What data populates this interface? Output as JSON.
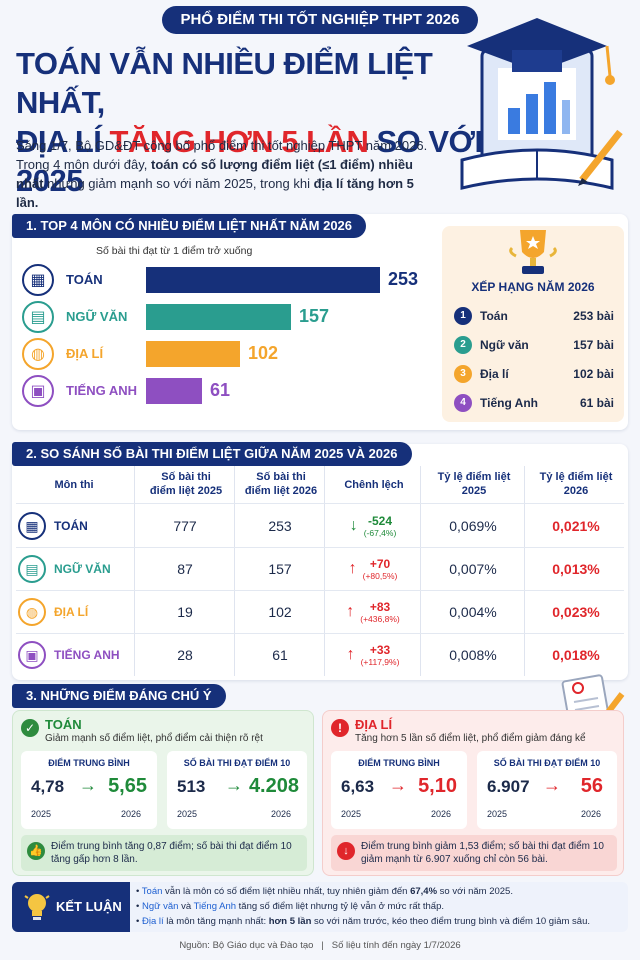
{
  "header": {
    "banner": "PHỔ ĐIỂM THI TỐT NGHIỆP THPT 2026",
    "title_line1": "TOÁN VẪN NHIỀU ĐIỂM LIỆT NHẤT,",
    "title_line2_pre": "ĐỊA LÍ ",
    "title_line2_highlight": "TĂNG HƠN 5 LẦN",
    "title_line2_post": " SO VỚI 2025",
    "intro_1": "Sáng 1/7, Bộ GD&ĐT công bố phổ điểm thi tốt nghiệp THPT năm 2026. Trong 4 môn dưới đây, ",
    "intro_bold": "toán có số lượng điểm liệt (≤1 điểm) nhiều nhất",
    "intro_2": " nhưng giảm mạnh so với năm 2025, trong khi ",
    "intro_bold2": "địa lí tăng hơn 5 lần.",
    "colors": {
      "navy": "#16307a",
      "red": "#e0262b"
    }
  },
  "section1": {
    "title": "1. TOP 4 MÔN CÓ NHIỀU ĐIỂM LIỆT NHẤT NĂM 2026",
    "note": "Số bài thi đạt từ 1 điểm trở xuống",
    "chart_data": {
      "type": "bar",
      "categories": [
        "TOÁN",
        "NGỮ VĂN",
        "ĐỊA LÍ",
        "TIẾNG ANH"
      ],
      "values": [
        253,
        157,
        102,
        61
      ],
      "colors": [
        "#16307a",
        "#2a9d8f",
        "#f4a52c",
        "#8e4fc1"
      ],
      "ylim": [
        0,
        253
      ]
    },
    "ranking": {
      "title": "XẾP HẠNG NĂM 2026",
      "unit": "bài",
      "items": [
        {
          "num": "1",
          "name": "Toán",
          "value": "253"
        },
        {
          "num": "2",
          "name": "Ngữ văn",
          "value": "157"
        },
        {
          "num": "3",
          "name": "Địa lí",
          "value": "102"
        },
        {
          "num": "4",
          "name": "Tiếng Anh",
          "value": "61"
        }
      ]
    }
  },
  "section2": {
    "title": "2. SO SÁNH SỐ BÀI THI ĐIỂM LIỆT GIỮA NĂM 2025 VÀ 2026",
    "headers": {
      "subject": "Môn thi",
      "c2025_1": "Số bài thi",
      "c2025_2": "điểm liệt 2025",
      "c2026_1": "Số bài thi",
      "c2026_2": "điểm liệt 2026",
      "diff": "Chênh lệch",
      "r2025_1": "Tỷ lệ điểm liệt",
      "r2025_2": "2025",
      "r2026_1": "Tỷ lệ điểm liệt",
      "r2026_2": "2026"
    },
    "rows": [
      {
        "subject": "TOÁN",
        "v2025": "777",
        "v2026": "253",
        "diff": "-524",
        "diff_pct": "(-67,4%)",
        "trend": "down",
        "r2025": "0,069%",
        "r2026": "0,021%"
      },
      {
        "subject": "NGỮ VĂN",
        "v2025": "87",
        "v2026": "157",
        "diff": "+70",
        "diff_pct": "(+80,5%)",
        "trend": "up",
        "r2025": "0,007%",
        "r2026": "0,013%"
      },
      {
        "subject": "ĐỊA LÍ",
        "v2025": "19",
        "v2026": "102",
        "diff": "+83",
        "diff_pct": "(+436,8%)",
        "trend": "up",
        "r2025": "0,004%",
        "r2026": "0,023%"
      },
      {
        "subject": "TIẾNG ANH",
        "v2025": "28",
        "v2026": "61",
        "diff": "+33",
        "diff_pct": "(+117,9%)",
        "trend": "up",
        "r2025": "0,008%",
        "r2026": "0,018%"
      }
    ]
  },
  "section3": {
    "title": "3. NHỮNG ĐIỂM ĐÁNG CHÚ Ý",
    "toan": {
      "title": "TOÁN",
      "subtitle": "Giảm mạnh số điểm liệt, phổ điểm cải thiện rõ rệt",
      "avg": {
        "label": "ĐIỂM TRUNG BÌNH",
        "from": "4,78",
        "to": "5,65",
        "y1": "2025",
        "y2": "2026"
      },
      "ten": {
        "label": "SỐ BÀI THI ĐẠT ĐIỂM 10",
        "from": "513",
        "to": "4.208",
        "y1": "2025",
        "y2": "2026"
      },
      "foot": "Điểm trung bình tăng 0,87 điểm; số bài thi đạt điểm 10 tăng gấp hơn 8 lần."
    },
    "diali": {
      "title": "ĐỊA LÍ",
      "subtitle": "Tăng hơn 5 lần số điểm liệt, phổ điểm giảm đáng kể",
      "avg": {
        "label": "ĐIỂM TRUNG BÌNH",
        "from": "6,63",
        "to": "5,10",
        "y1": "2025",
        "y2": "2026"
      },
      "ten": {
        "label": "SỐ BÀI THI ĐẠT ĐIỂM 10",
        "from": "6.907",
        "to": "56",
        "y1": "2025",
        "y2": "2026"
      },
      "foot": "Điểm trung bình giảm 1,53 điểm; số bài thi đạt điểm 10 giảm mạnh từ 6.907 xuống chỉ còn 56 bài."
    }
  },
  "conclusion": {
    "tag": "KẾT LUẬN",
    "l1_a": "Toán",
    "l1_b": " vẫn là môn có số điểm liệt nhiều nhất, tuy nhiên giảm đến ",
    "l1_c": "67,4%",
    "l1_d": " so với năm 2025.",
    "l2_a": "Ngữ văn",
    "l2_b": " và ",
    "l2_c": "Tiếng Anh",
    "l2_d": " tăng số điểm liệt nhưng tỷ lệ vẫn ở mức rất thấp.",
    "l3_a": "Địa lí",
    "l3_b": " là môn tăng mạnh nhất: ",
    "l3_c": "hơn 5 lần",
    "l3_d": " so với năm trước, kéo theo điểm trung bình và điểm 10 giảm sâu."
  },
  "footer": {
    "source": "Nguồn: Bộ Giáo dục và Đào tạo",
    "sep": "|",
    "date": "Số liệu tính đến ngày 1/7/2026"
  }
}
